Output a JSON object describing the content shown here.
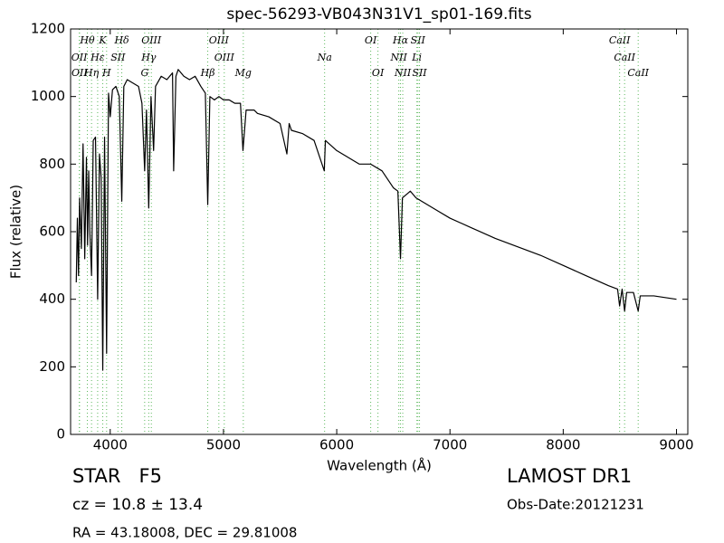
{
  "chart_data": {
    "type": "line",
    "title": "spec-56293-VB043N31V1_sp01-169.fits",
    "x_label": "Wavelength (Å)",
    "y_label": "Flux (relative)",
    "xlim": [
      3650,
      9100
    ],
    "ylim": [
      0,
      1200
    ],
    "xticks": [
      4000,
      5000,
      6000,
      7000,
      8000,
      9000
    ],
    "yticks": [
      0,
      200,
      400,
      600,
      800,
      1000,
      1200
    ],
    "color": "#000000",
    "line_marker_color": "#5cb85c",
    "x": [
      3700,
      3710,
      3720,
      3730,
      3745,
      3760,
      3775,
      3790,
      3800,
      3810,
      3820,
      3835,
      3850,
      3870,
      3889,
      3905,
      3920,
      3934,
      3950,
      3968,
      3985,
      4000,
      4020,
      4050,
      4080,
      4102,
      4120,
      4150,
      4200,
      4250,
      4280,
      4304,
      4320,
      4340,
      4360,
      4383,
      4400,
      4450,
      4500,
      4550,
      4560,
      4580,
      4600,
      4650,
      4700,
      4750,
      4800,
      4840,
      4861,
      4880,
      4920,
      4960,
      5000,
      5050,
      5100,
      5150,
      5172,
      5200,
      5270,
      5300,
      5400,
      5500,
      5560,
      5580,
      5600,
      5700,
      5800,
      5890,
      5900,
      6000,
      6100,
      6200,
      6300,
      6400,
      6500,
      6540,
      6563,
      6580,
      6650,
      6700,
      6800,
      6900,
      7000,
      7200,
      7400,
      7600,
      7800,
      8000,
      8200,
      8400,
      8480,
      8498,
      8520,
      8542,
      8560,
      8620,
      8662,
      8680,
      8800,
      8900,
      9000
    ],
    "values": [
      450,
      640,
      470,
      700,
      550,
      860,
      520,
      820,
      560,
      780,
      600,
      470,
      870,
      880,
      400,
      830,
      760,
      190,
      880,
      240,
      1010,
      940,
      1020,
      1030,
      1000,
      690,
      1030,
      1050,
      1040,
      1030,
      980,
      780,
      960,
      670,
      1000,
      840,
      1030,
      1060,
      1050,
      1070,
      780,
      1060,
      1080,
      1060,
      1050,
      1060,
      1030,
      1010,
      680,
      1000,
      990,
      1000,
      990,
      990,
      980,
      980,
      840,
      960,
      960,
      950,
      940,
      920,
      830,
      920,
      900,
      890,
      870,
      780,
      870,
      840,
      820,
      800,
      800,
      780,
      730,
      720,
      520,
      700,
      720,
      700,
      680,
      660,
      640,
      610,
      580,
      555,
      530,
      500,
      470,
      440,
      430,
      380,
      430,
      365,
      420,
      420,
      365,
      410,
      410,
      405,
      400
    ],
    "spectral_lines": [
      [
        {
          "label": "Hθ",
          "wavelength": 3798
        },
        {
          "label": "K",
          "wavelength": 3934
        },
        {
          "label": "Hδ",
          "wavelength": 4102
        },
        {
          "label": "OIII",
          "wavelength": 4363
        },
        {
          "label": "OIII",
          "wavelength": 4959
        },
        {
          "label": "OI",
          "wavelength": 6300
        },
        {
          "label": "Hα",
          "wavelength": 6563
        },
        {
          "label": "SII",
          "wavelength": 6717
        },
        {
          "label": "CaII",
          "wavelength": 8498
        }
      ],
      [
        {
          "label": "OII",
          "wavelength": 3727
        },
        {
          "label": "Hε",
          "wavelength": 3889
        },
        {
          "label": "SII",
          "wavelength": 4068
        },
        {
          "label": "Hγ",
          "wavelength": 4340
        },
        {
          "label": "OIII",
          "wavelength": 5007
        },
        {
          "label": "Na",
          "wavelength": 5893
        },
        {
          "label": "NII",
          "wavelength": 6548
        },
        {
          "label": "Li",
          "wavelength": 6708
        },
        {
          "label": "CaII",
          "wavelength": 8542
        }
      ],
      [
        {
          "label": "OII",
          "wavelength": 3729
        },
        {
          "label": "Hη",
          "wavelength": 3835
        },
        {
          "label": "H",
          "wavelength": 3968
        },
        {
          "label": "G",
          "wavelength": 4304
        },
        {
          "label": "Hβ",
          "wavelength": 4861
        },
        {
          "label": "Mg",
          "wavelength": 5175
        },
        {
          "label": "OI",
          "wavelength": 6364
        },
        {
          "label": "NII",
          "wavelength": 6583
        },
        {
          "label": "SII",
          "wavelength": 6731
        },
        {
          "label": "CaII",
          "wavelength": 8662
        }
      ]
    ],
    "annotations": {
      "object": "STAR   F5",
      "redshift": "cz = 10.8 ± 13.4",
      "coordinates": "RA = 43.18008, DEC = 29.81008",
      "survey": "LAMOST DR1",
      "obs_date": "Obs-Date:20121231"
    }
  }
}
